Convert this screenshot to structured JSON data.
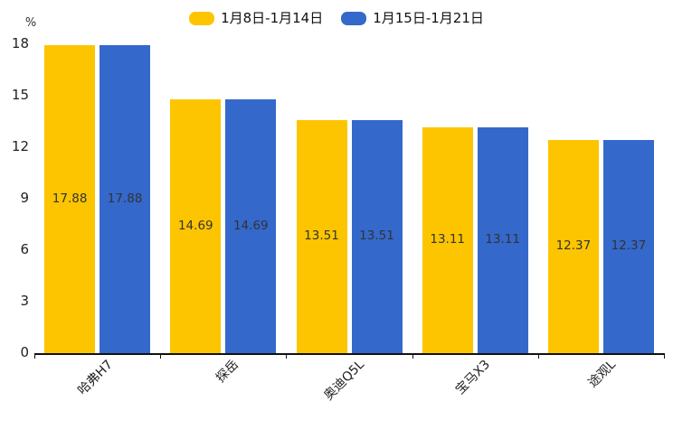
{
  "chart_data": {
    "type": "bar",
    "title": "",
    "categories": [
      "哈弗H7",
      "探岳",
      "奥迪Q5L",
      "宝马X3",
      "途观L"
    ],
    "series": [
      {
        "name": "1月8日-1月14日",
        "color": "#FDC500",
        "values": [
          17.88,
          14.69,
          13.51,
          13.11,
          12.37
        ]
      },
      {
        "name": "1月15日-1月21日",
        "color": "#3468CB",
        "values": [
          17.88,
          14.69,
          13.51,
          13.11,
          12.37
        ]
      }
    ],
    "value_labels": [
      "17.88",
      "14.69",
      "13.51",
      "13.11",
      "12.37"
    ],
    "ylabel": "%",
    "ylim": [
      0,
      18
    ],
    "yticks": [
      0,
      3,
      6,
      9,
      12,
      15,
      18
    ],
    "grid": false,
    "legend_position": "top-center",
    "value_label_position": "inside-center",
    "xlabel_rotation_deg": 45
  },
  "colors": {
    "background": "#FFFFFF",
    "axis_line": "#111111",
    "tick_text": "#222222",
    "value_text": "#333333",
    "series_yellow": "#FDC500",
    "series_blue": "#3468CB"
  }
}
